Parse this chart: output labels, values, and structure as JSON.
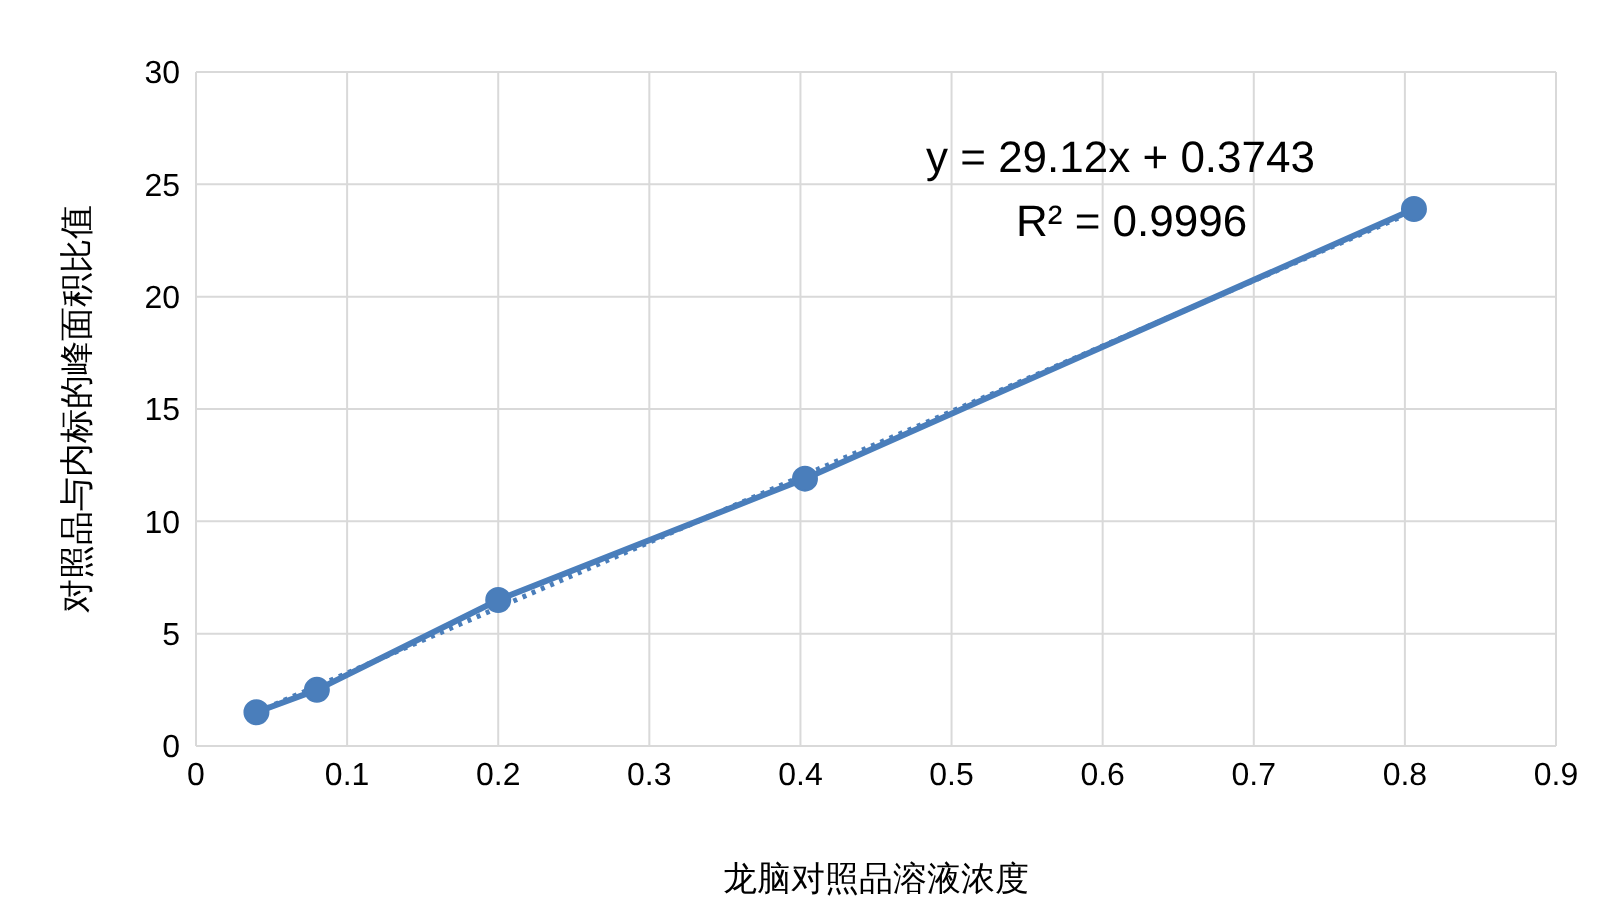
{
  "chart_data": {
    "type": "line",
    "xlabel": "龙脑对照品溶液浓度",
    "ylabel": "对照品与内标的峰面积比值",
    "series": [
      {
        "color": "#4a7ebb",
        "x": [
          0.04,
          0.08,
          0.2,
          0.403,
          0.806
        ],
        "values": [
          1.5,
          2.5,
          6.5,
          11.9,
          23.9
        ],
        "marker": "circle",
        "line_style": "solid"
      },
      {
        "color": "#4a7ebb",
        "x": [
          0.04,
          0.806
        ],
        "values": [
          1.5,
          23.8
        ],
        "marker": "none",
        "line_style": "dotted"
      }
    ],
    "xlim": [
      0,
      0.9
    ],
    "xticks": [
      0,
      0.1,
      0.2,
      0.3,
      0.4,
      0.5,
      0.6,
      0.7,
      0.8,
      0.9
    ],
    "ylim": [
      0,
      30
    ],
    "yticks": [
      0,
      5,
      10,
      15,
      20,
      25,
      30
    ],
    "grid": true,
    "annotations": [
      "y = 29.12x + 0.3743",
      "R² = 0.9996"
    ]
  }
}
